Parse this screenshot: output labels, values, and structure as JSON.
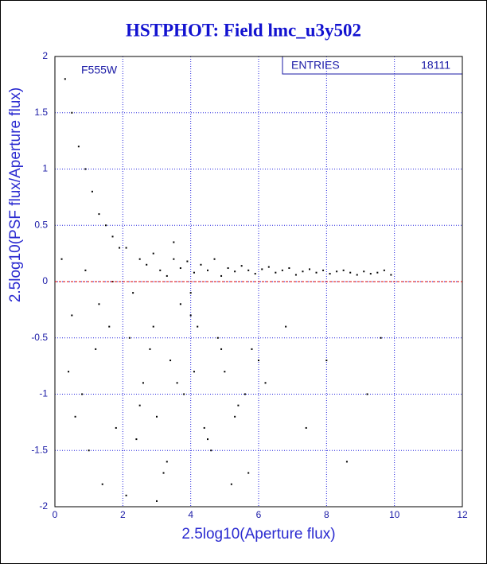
{
  "chart_data": {
    "type": "scatter",
    "title": "HSTPHOT: Field lmc_u3y502",
    "annotation": "F555W",
    "stats_label": "ENTRIES",
    "stats_value": 18111,
    "x_label": "2.5log10(Aperture flux)",
    "y_label": "2.5log10(PSF flux/Aperture flux)",
    "xlim": [
      0,
      12
    ],
    "ylim": [
      -2,
      2
    ],
    "xticks": [
      0,
      2,
      4,
      6,
      8,
      10,
      12
    ],
    "yticks": [
      -2,
      -1.5,
      -1,
      -0.5,
      0,
      0.5,
      1,
      1.5,
      2
    ],
    "grid": true,
    "grid_color": "#2222dd",
    "reference_line": 0,
    "reference_color": "#dd0000",
    "series": [
      {
        "color": "#000000",
        "x": [
          0.3,
          0.5,
          0.7,
          0.9,
          1.1,
          1.3,
          1.5,
          1.7,
          1.9,
          0.4,
          0.6,
          0.8,
          1.0,
          1.2,
          1.4,
          1.6,
          1.8,
          0.2,
          0.5,
          0.9,
          1.3,
          1.7,
          2.1,
          2.3,
          2.5,
          2.7,
          2.9,
          3.1,
          3.3,
          3.5,
          3.7,
          3.9,
          4.1,
          4.3,
          4.5,
          4.7,
          4.9,
          5.1,
          5.3,
          5.5,
          5.7,
          5.9,
          6.1,
          6.3,
          6.5,
          6.7,
          6.9,
          7.1,
          7.3,
          7.5,
          7.7,
          7.9,
          8.1,
          8.3,
          8.5,
          8.7,
          8.9,
          9.1,
          9.3,
          9.5,
          9.7,
          9.9,
          2.2,
          2.6,
          3.0,
          3.4,
          3.8,
          4.2,
          4.6,
          5.0,
          5.4,
          5.8,
          2.4,
          2.8,
          3.2,
          3.6,
          4.0,
          4.4,
          4.8,
          5.2,
          5.6,
          6.0,
          2.1,
          2.5,
          2.9,
          3.3,
          3.7,
          4.1,
          4.5,
          4.9,
          5.3,
          5.7,
          6.2,
          6.8,
          7.4,
          8.0,
          8.6,
          9.2,
          9.6,
          3.0,
          3.5,
          4.0
        ],
        "values": [
          1.8,
          1.5,
          1.2,
          1.0,
          0.8,
          0.6,
          0.5,
          0.4,
          0.3,
          -0.8,
          -1.2,
          -1.0,
          -1.5,
          -0.6,
          -1.8,
          -0.4,
          -1.3,
          0.2,
          -0.3,
          0.1,
          -0.2,
          0.0,
          0.3,
          -0.1,
          0.2,
          0.15,
          0.25,
          0.1,
          0.05,
          0.2,
          0.12,
          0.18,
          0.08,
          0.15,
          0.1,
          0.2,
          0.05,
          0.12,
          0.09,
          0.14,
          0.1,
          0.07,
          0.11,
          0.13,
          0.08,
          0.1,
          0.12,
          0.06,
          0.09,
          0.11,
          0.08,
          0.1,
          0.07,
          0.09,
          0.1,
          0.08,
          0.06,
          0.09,
          0.07,
          0.08,
          0.1,
          0.06,
          -0.5,
          -0.9,
          -1.2,
          -0.7,
          -1.0,
          -0.4,
          -1.5,
          -0.8,
          -1.1,
          -0.6,
          -1.4,
          -0.6,
          -1.7,
          -0.9,
          -0.3,
          -1.3,
          -0.5,
          -1.8,
          -1.0,
          -0.7,
          -1.9,
          -1.1,
          -0.4,
          -1.6,
          -0.2,
          -0.8,
          -1.4,
          -0.6,
          -1.2,
          -1.7,
          -0.9,
          -0.4,
          -1.3,
          -0.7,
          -1.6,
          -1.0,
          -0.5,
          -1.95,
          0.35,
          -0.1
        ]
      }
    ]
  }
}
